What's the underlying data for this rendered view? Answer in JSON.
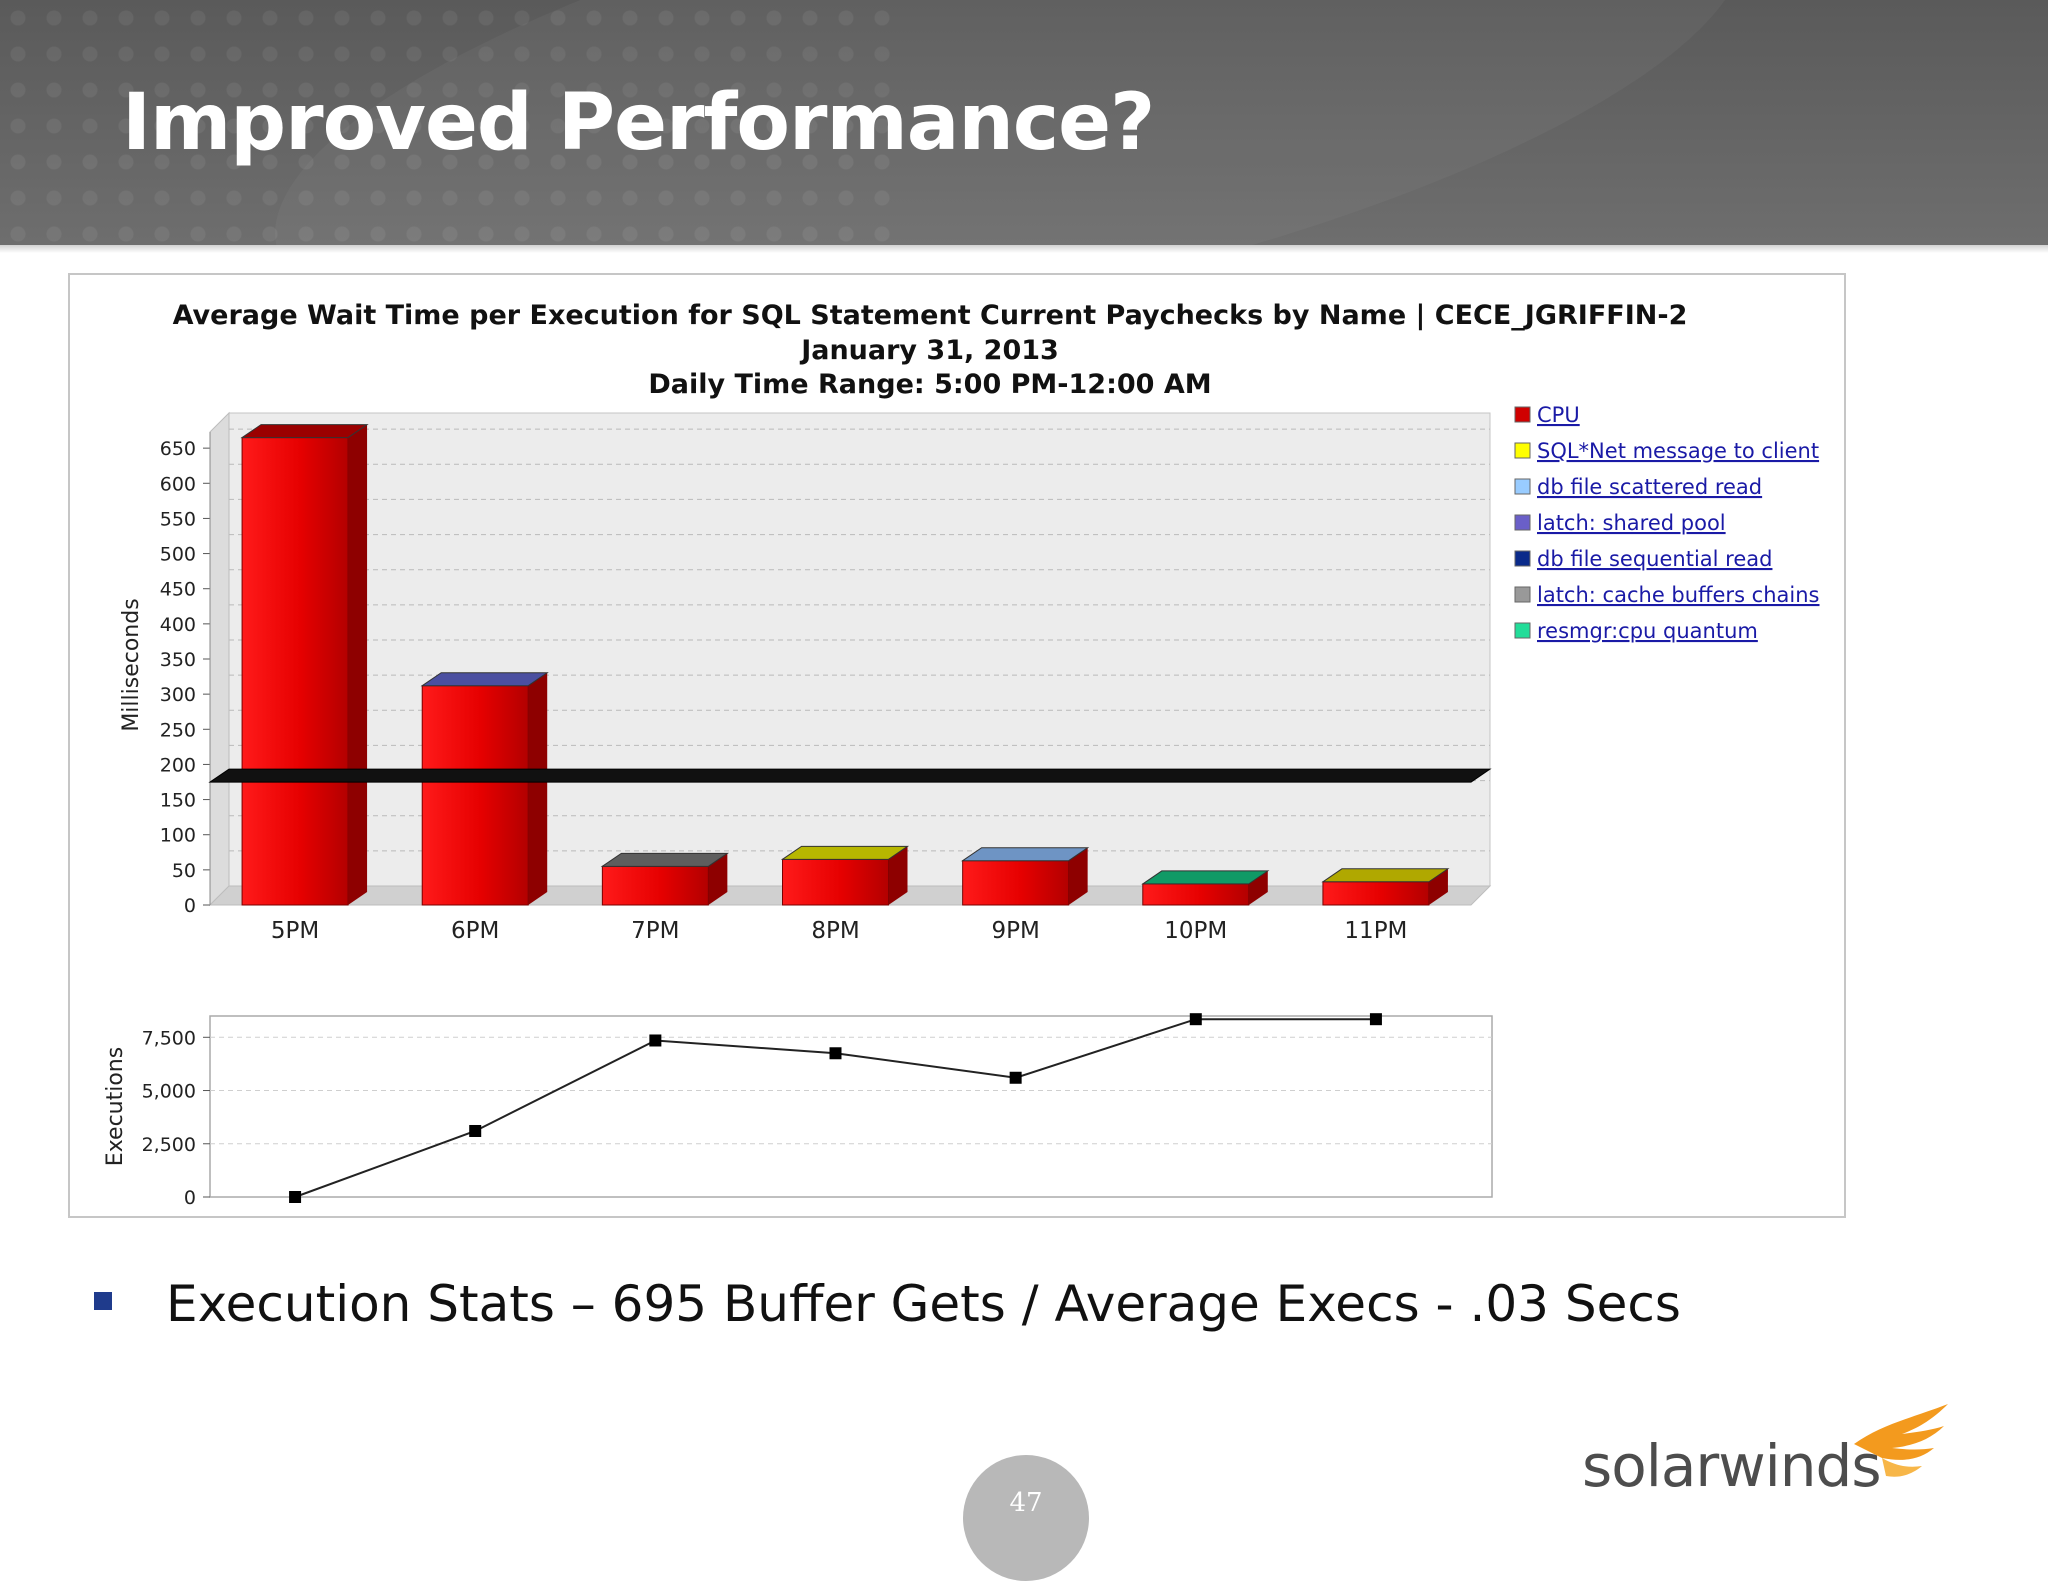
{
  "slide": {
    "title": "Improved Performance?",
    "bullet": "Execution Stats – 695 Buffer Gets / Average Execs - .03 Secs",
    "page_number": "47",
    "logo_text": "solarwinds",
    "logo_icon": "solarwinds-flame-icon"
  },
  "colors": {
    "bar_red": "#e00000",
    "bar_red_dark": "#8e0000",
    "line": "#222222",
    "legend_link": "#1a1aa6"
  },
  "chart_data": [
    {
      "type": "bar",
      "title": "Average Wait Time per Execution for SQL Statement Current Paychecks by Name  |  CECE_JGRIFFIN-2",
      "subtitle": "January 31, 2013",
      "subtitle2": "Daily Time Range: 5:00 PM-12:00 AM",
      "xlabel": "",
      "ylabel": "Milliseconds",
      "ylim": [
        0,
        700
      ],
      "yticks": [
        0,
        50,
        100,
        150,
        200,
        250,
        300,
        350,
        400,
        450,
        500,
        550,
        600,
        650
      ],
      "categories": [
        "5PM",
        "6PM",
        "7PM",
        "8PM",
        "9PM",
        "10PM",
        "11PM"
      ],
      "values": [
        665,
        312,
        55,
        65,
        63,
        30,
        33
      ],
      "cap_colors": [
        "#9b0000",
        "#4b4fa0",
        "#5e5e5e",
        "#b7b700",
        "#6e94c4",
        "#109a66",
        "#b0a800"
      ],
      "baseline_value": 182,
      "grid": true,
      "legend_placement": "right",
      "legend": [
        {
          "label": "CPU",
          "color": "#d00000"
        },
        {
          "label": "SQL*Net message to client",
          "color": "#ffff00"
        },
        {
          "label": "db file scattered read",
          "color": "#99ccff"
        },
        {
          "label": "latch: shared pool",
          "color": "#6a5fc8"
        },
        {
          "label": "db file sequential read",
          "color": "#0a2a8a"
        },
        {
          "label": "latch: cache buffers chains",
          "color": "#999999"
        },
        {
          "label": "resmgr:cpu quantum",
          "color": "#22dd99"
        }
      ]
    },
    {
      "type": "line",
      "xlabel": "",
      "ylabel": "Executions",
      "ylim": [
        0,
        8500
      ],
      "yticks": [
        0,
        2500,
        5000,
        7500
      ],
      "ytick_labels": [
        "0",
        "2,500",
        "5,000",
        "7,500"
      ],
      "categories": [
        "5PM",
        "6PM",
        "7PM",
        "8PM",
        "9PM",
        "10PM",
        "11PM"
      ],
      "values": [
        0,
        3100,
        7350,
        6750,
        5600,
        8350,
        8350
      ],
      "grid": true
    }
  ]
}
